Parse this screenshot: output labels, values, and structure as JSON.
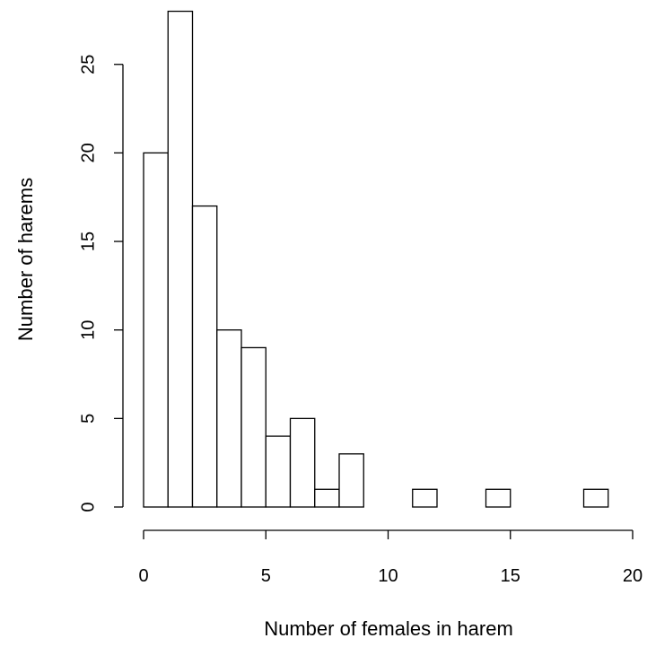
{
  "chart_data": {
    "type": "bar",
    "title": "",
    "xlabel": "Number of females in harem",
    "ylabel": "Number of harems",
    "x_bins": [
      [
        0,
        1
      ],
      [
        1,
        2
      ],
      [
        2,
        3
      ],
      [
        3,
        4
      ],
      [
        4,
        5
      ],
      [
        5,
        6
      ],
      [
        6,
        7
      ],
      [
        7,
        8
      ],
      [
        8,
        9
      ],
      [
        9,
        10
      ],
      [
        10,
        11
      ],
      [
        11,
        12
      ],
      [
        12,
        13
      ],
      [
        13,
        14
      ],
      [
        14,
        15
      ],
      [
        15,
        16
      ],
      [
        16,
        17
      ],
      [
        17,
        18
      ],
      [
        18,
        19
      ],
      [
        19,
        20
      ]
    ],
    "values": [
      20,
      28,
      17,
      10,
      9,
      4,
      5,
      1,
      3,
      0,
      0,
      1,
      0,
      0,
      1,
      0,
      0,
      0,
      1,
      0
    ],
    "xlim": [
      0,
      20
    ],
    "ylim": [
      0,
      28
    ],
    "x_ticks": [
      0,
      5,
      10,
      15,
      20
    ],
    "x_tick_labels": [
      "0",
      "5",
      "10",
      "15",
      "20"
    ],
    "y_ticks": [
      0,
      5,
      10,
      15,
      20,
      25
    ],
    "y_tick_labels": [
      "0",
      "5",
      "10",
      "15",
      "20",
      "25"
    ],
    "grid": false,
    "bar_fill": "#ffffff",
    "bar_stroke": "#000000"
  }
}
